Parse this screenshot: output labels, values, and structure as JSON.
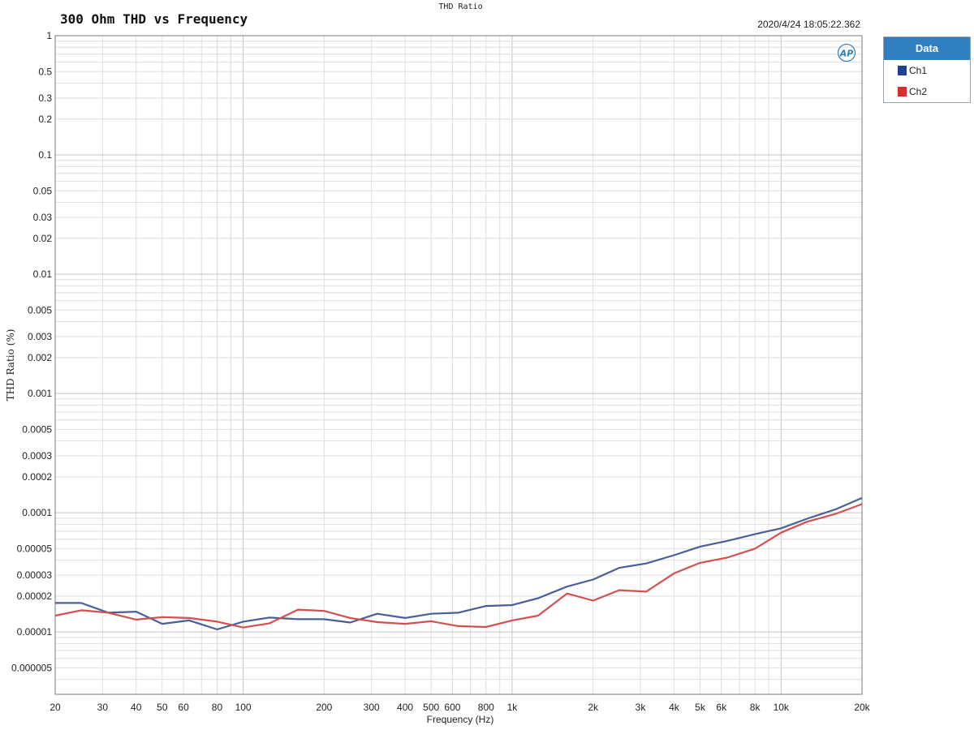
{
  "header": {
    "title": "300 Ohm THD vs Frequency",
    "label": "THD Ratio",
    "timestamp": "2020/4/24 18:05:22.362",
    "logo_text": "AP"
  },
  "legend": {
    "title": "Data",
    "items": [
      {
        "label": "Ch1",
        "color": "#1f3f8f"
      },
      {
        "label": "Ch2",
        "color": "#d33131"
      }
    ]
  },
  "chart_data": {
    "type": "line",
    "title": "300 Ohm THD vs Frequency",
    "xlabel": "Frequency (Hz)",
    "ylabel": "THD Ratio (%)",
    "x_scale": "log",
    "y_scale": "log",
    "xlim": [
      20,
      20000
    ],
    "ylim": [
      3e-06,
      1
    ],
    "grid": true,
    "legend_position": "outside-right",
    "x_ticks": [
      {
        "v": 20,
        "label": "20"
      },
      {
        "v": 30,
        "label": "30"
      },
      {
        "v": 40,
        "label": "40"
      },
      {
        "v": 50,
        "label": "50"
      },
      {
        "v": 60,
        "label": "60"
      },
      {
        "v": 80,
        "label": "80"
      },
      {
        "v": 100,
        "label": "100"
      },
      {
        "v": 200,
        "label": "200"
      },
      {
        "v": 300,
        "label": "300"
      },
      {
        "v": 400,
        "label": "400"
      },
      {
        "v": 500,
        "label": "500"
      },
      {
        "v": 600,
        "label": "600"
      },
      {
        "v": 800,
        "label": "800"
      },
      {
        "v": 1000,
        "label": "1k"
      },
      {
        "v": 2000,
        "label": "2k"
      },
      {
        "v": 3000,
        "label": "3k"
      },
      {
        "v": 4000,
        "label": "4k"
      },
      {
        "v": 5000,
        "label": "5k"
      },
      {
        "v": 6000,
        "label": "6k"
      },
      {
        "v": 8000,
        "label": "8k"
      },
      {
        "v": 10000,
        "label": "10k"
      },
      {
        "v": 20000,
        "label": "20k"
      }
    ],
    "y_ticks": [
      {
        "v": 1,
        "label": "1"
      },
      {
        "v": 0.5,
        "label": "0.5"
      },
      {
        "v": 0.3,
        "label": "0.3"
      },
      {
        "v": 0.2,
        "label": "0.2"
      },
      {
        "v": 0.1,
        "label": "0.1"
      },
      {
        "v": 0.05,
        "label": "0.05"
      },
      {
        "v": 0.03,
        "label": "0.03"
      },
      {
        "v": 0.02,
        "label": "0.02"
      },
      {
        "v": 0.01,
        "label": "0.01"
      },
      {
        "v": 0.005,
        "label": "0.005"
      },
      {
        "v": 0.003,
        "label": "0.003"
      },
      {
        "v": 0.002,
        "label": "0.002"
      },
      {
        "v": 0.001,
        "label": "0.001"
      },
      {
        "v": 0.0005,
        "label": "0.0005"
      },
      {
        "v": 0.0003,
        "label": "0.0003"
      },
      {
        "v": 0.0002,
        "label": "0.0002"
      },
      {
        "v": 0.0001,
        "label": "0.0001"
      },
      {
        "v": 5e-05,
        "label": "0.00005"
      },
      {
        "v": 3e-05,
        "label": "0.00003"
      },
      {
        "v": 2e-05,
        "label": "0.00002"
      },
      {
        "v": 1e-05,
        "label": "0.00001"
      },
      {
        "v": 5e-06,
        "label": "0.000005"
      }
    ],
    "series": [
      {
        "name": "Ch1",
        "color": "#4a5f98",
        "points": [
          [
            20,
            1.75e-05
          ],
          [
            25,
            1.75e-05
          ],
          [
            31.5,
            1.45e-05
          ],
          [
            40,
            1.48e-05
          ],
          [
            50,
            1.17e-05
          ],
          [
            63,
            1.25e-05
          ],
          [
            80,
            1.05e-05
          ],
          [
            100,
            1.22e-05
          ],
          [
            125,
            1.32e-05
          ],
          [
            160,
            1.28e-05
          ],
          [
            200,
            1.28e-05
          ],
          [
            250,
            1.2e-05
          ],
          [
            315,
            1.42e-05
          ],
          [
            400,
            1.31e-05
          ],
          [
            500,
            1.42e-05
          ],
          [
            630,
            1.45e-05
          ],
          [
            800,
            1.65e-05
          ],
          [
            1000,
            1.68e-05
          ],
          [
            1250,
            1.92e-05
          ],
          [
            1600,
            2.4e-05
          ],
          [
            2000,
            2.75e-05
          ],
          [
            2500,
            3.45e-05
          ],
          [
            3150,
            3.75e-05
          ],
          [
            4000,
            4.4e-05
          ],
          [
            5000,
            5.2e-05
          ],
          [
            6300,
            5.8e-05
          ],
          [
            8000,
            6.6e-05
          ],
          [
            10000,
            7.4e-05
          ],
          [
            12500,
            8.9e-05
          ],
          [
            16000,
            0.000107
          ],
          [
            20000,
            0.000133
          ]
        ]
      },
      {
        "name": "Ch2",
        "color": "#d35050",
        "points": [
          [
            20,
            1.37e-05
          ],
          [
            25,
            1.52e-05
          ],
          [
            31.5,
            1.45e-05
          ],
          [
            40,
            1.27e-05
          ],
          [
            50,
            1.33e-05
          ],
          [
            63,
            1.31e-05
          ],
          [
            80,
            1.22e-05
          ],
          [
            100,
            1.09e-05
          ],
          [
            125,
            1.18e-05
          ],
          [
            160,
            1.54e-05
          ],
          [
            200,
            1.5e-05
          ],
          [
            250,
            1.31e-05
          ],
          [
            315,
            1.21e-05
          ],
          [
            400,
            1.17e-05
          ],
          [
            500,
            1.23e-05
          ],
          [
            630,
            1.12e-05
          ],
          [
            800,
            1.1e-05
          ],
          [
            1000,
            1.25e-05
          ],
          [
            1250,
            1.37e-05
          ],
          [
            1600,
            2.1e-05
          ],
          [
            2000,
            1.83e-05
          ],
          [
            2500,
            2.24e-05
          ],
          [
            3150,
            2.18e-05
          ],
          [
            4000,
            3.1e-05
          ],
          [
            5000,
            3.8e-05
          ],
          [
            6300,
            4.2e-05
          ],
          [
            8000,
            5e-05
          ],
          [
            10000,
            6.8e-05
          ],
          [
            12500,
            8.4e-05
          ],
          [
            16000,
            9.8e-05
          ],
          [
            20000,
            0.000118
          ]
        ]
      }
    ]
  }
}
